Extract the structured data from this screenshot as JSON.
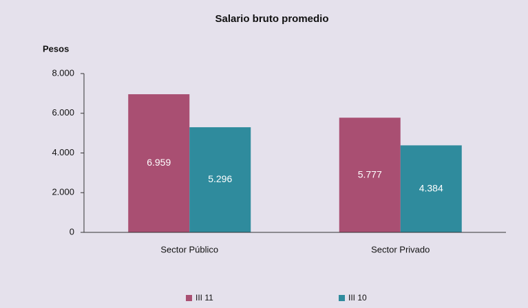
{
  "chart_data": {
    "type": "bar",
    "title": "Salario bruto promedio",
    "y_label": "Pesos",
    "categories": [
      "Sector Público",
      "Sector Privado"
    ],
    "series": [
      {
        "name": "III 11",
        "color": "#a94f72",
        "values": [
          6959,
          5777
        ],
        "value_labels": [
          "6.959",
          "5.777"
        ]
      },
      {
        "name": "III 10",
        "color": "#2f8b9d",
        "values": [
          5296,
          4384
        ],
        "value_labels": [
          "5.296",
          "4.384"
        ]
      }
    ],
    "ylim": [
      0,
      8000
    ],
    "yticks": [
      0,
      {
        "value": 2000,
        "label": "2.000"
      },
      {
        "value": 4000,
        "label": "4.000"
      },
      {
        "value": 6000,
        "label": "6.000"
      },
      {
        "value": 8000,
        "label": "8.000"
      }
    ],
    "grid": false,
    "legend": "bottom"
  }
}
